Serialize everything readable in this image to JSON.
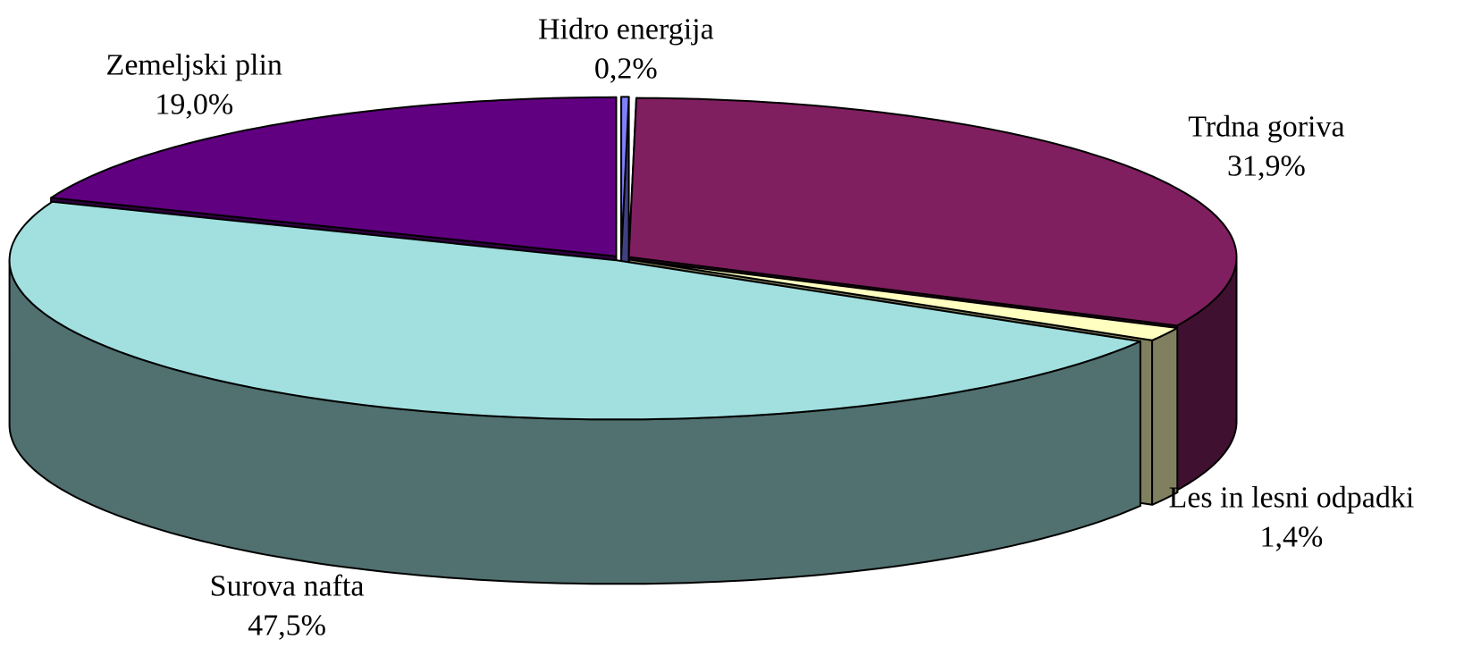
{
  "chart_data": {
    "type": "pie3d",
    "categories": [
      "Hidro energija",
      "Trdna goriva",
      "Les in lesni odpadki",
      "Surova nafta",
      "Zemeljski plin"
    ],
    "values": [
      0.2,
      31.9,
      1.4,
      47.5,
      19.0
    ],
    "value_labels": [
      "0,2%",
      "31,9%",
      "1,4%",
      "47,5%",
      "19,0%"
    ],
    "colors": [
      "#8080ff",
      "#7f1f5f",
      "#ffffc0",
      "#a2e0e0",
      "#600080"
    ]
  }
}
